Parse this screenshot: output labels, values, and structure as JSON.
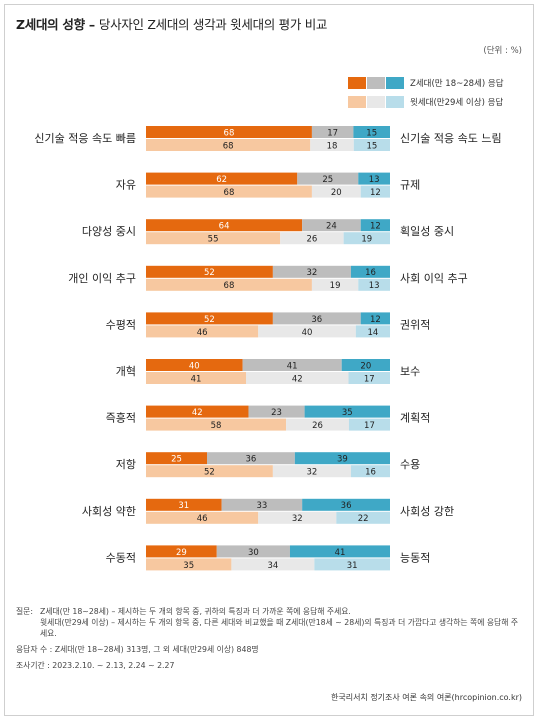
{
  "header": {
    "title_main": "Z세대의 성향 –",
    "title_sub": "당사자인 Z세대의 생각과 윗세대의 평가 비교",
    "unit": "(단위 : %)"
  },
  "legend": {
    "z_label": "Z세대(만 18~28세) 응답",
    "older_label": "윗세대(만29세 이상) 응답"
  },
  "colors": {
    "z_left": "#E5690F",
    "z_mid": "#BDBDBD",
    "z_right": "#3FA8C6",
    "older_left": "#F7C8A0",
    "older_mid": "#E8E8E8",
    "older_right": "#B8DDEA"
  },
  "chart_data": {
    "type": "bar",
    "stacked": true,
    "orientation": "horizontal",
    "xlim": [
      0,
      100
    ],
    "series": [
      {
        "name": "Z세대(만 18~28세) 응답"
      },
      {
        "name": "윗세대(만29세 이상) 응답"
      }
    ],
    "items": [
      {
        "left": "신기술 적응 속도 빠름",
        "right": "신기술 적응 속도 느림",
        "z": [
          68,
          17,
          15
        ],
        "older": [
          68,
          18,
          15
        ]
      },
      {
        "left": "자유",
        "right": "규제",
        "z": [
          62,
          25,
          13
        ],
        "older": [
          68,
          20,
          12
        ]
      },
      {
        "left": "다양성 중시",
        "right": "획일성 중시",
        "z": [
          64,
          24,
          12
        ],
        "older": [
          55,
          26,
          19
        ]
      },
      {
        "left": "개인 이익 추구",
        "right": "사회 이익 추구",
        "z": [
          52,
          32,
          16
        ],
        "older": [
          68,
          19,
          13
        ]
      },
      {
        "left": "수평적",
        "right": "권위적",
        "z": [
          52,
          36,
          12
        ],
        "older": [
          46,
          40,
          14
        ]
      },
      {
        "left": "개혁",
        "right": "보수",
        "z": [
          40,
          41,
          20
        ],
        "older": [
          41,
          42,
          17
        ]
      },
      {
        "left": "즉흥적",
        "right": "계획적",
        "z": [
          42,
          23,
          35
        ],
        "older": [
          58,
          26,
          17
        ]
      },
      {
        "left": "저항",
        "right": "수용",
        "z": [
          25,
          36,
          39
        ],
        "older": [
          52,
          32,
          16
        ]
      },
      {
        "left": "사회성 약한",
        "right": "사회성 강한",
        "z": [
          31,
          33,
          36
        ],
        "older": [
          46,
          32,
          22
        ]
      },
      {
        "left": "수동적",
        "right": "능동적",
        "z": [
          29,
          30,
          41
        ],
        "older": [
          35,
          34,
          31
        ]
      }
    ]
  },
  "footnote": {
    "q_lead": "질문:",
    "q1": "Z세대(만 18~28세) – 제시하는 두 개의 항목 중, 귀하의 특징과 더 가까운 쪽에 응답해 주세요.",
    "q2": "윗세대(만29세 이상) – 제시하는 두 개의 항목 중, 다른 세대와 비교했을 때 Z세대(만18세 ~ 28세)의 특징과 더 가깝다고 생각하는 쪽에 응답해 주세요.",
    "sample": "응답자 수 : Z세대(만 18~28세) 313명, 그 외 세대(만29세 이상) 848명",
    "period": "조사기간 : 2023.2.10. ~ 2.13, 2.24 ~ 2.27"
  },
  "credit": "한국리서치 정기조사 여론 속의 여론(hrcopinion.co.kr)"
}
